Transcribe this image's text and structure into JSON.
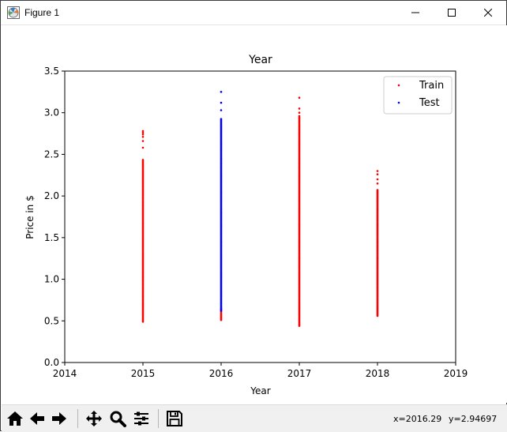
{
  "window": {
    "title": "Figure 1"
  },
  "toolbar": {
    "buttons": [
      "home-icon",
      "back-arrow-icon",
      "forward-arrow-icon",
      "pan-icon",
      "zoom-icon",
      "subplots-icon",
      "save-icon"
    ],
    "coord_x": "x=2016.29",
    "coord_y": "y=2.94697"
  },
  "chart_data": {
    "type": "scatter",
    "title": "Year",
    "xlabel": "Year",
    "ylabel": "Price in $",
    "xlim": [
      2014,
      2019
    ],
    "ylim": [
      0.0,
      3.5
    ],
    "x_ticks": [
      "2014",
      "2015",
      "2016",
      "2017",
      "2018",
      "2019"
    ],
    "y_ticks": [
      "0.0",
      "0.5",
      "1.0",
      "1.5",
      "2.0",
      "2.5",
      "3.0",
      "3.5"
    ],
    "legend_position": "top-right",
    "grid": false,
    "series": [
      {
        "name": "Train",
        "color": "#ff0000",
        "groups": [
          {
            "x": 2015,
            "min": 0.49,
            "max": 2.44,
            "outliers": [
              2.58,
              2.66,
              2.71,
              2.74,
              2.76,
              2.78
            ]
          },
          {
            "x": 2016,
            "min": 0.51,
            "max": 0.65,
            "outliers": []
          },
          {
            "x": 2017,
            "min": 0.44,
            "max": 2.96,
            "outliers": [
              3.0,
              3.05,
              3.18
            ]
          },
          {
            "x": 2018,
            "min": 0.56,
            "max": 2.08,
            "outliers": [
              2.15,
              2.2,
              2.26,
              2.3
            ]
          }
        ]
      },
      {
        "name": "Test",
        "color": "#0000ff",
        "groups": [
          {
            "x": 2016,
            "min": 0.62,
            "max": 2.93,
            "outliers": [
              3.03,
              3.12,
              3.25
            ]
          }
        ]
      }
    ]
  }
}
